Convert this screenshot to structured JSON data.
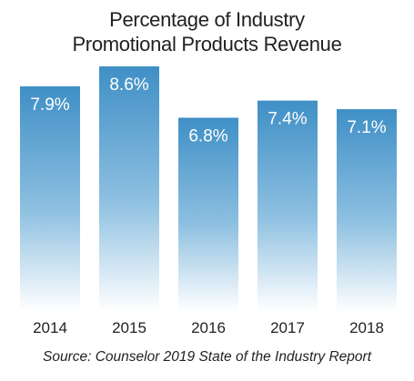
{
  "chart_data": {
    "type": "bar",
    "title_line1": "Percentage of Industry",
    "title_line2": "Promotional Products Revenue",
    "categories": [
      "2014",
      "2015",
      "2016",
      "2017",
      "2018"
    ],
    "values": [
      7.9,
      8.6,
      6.8,
      7.4,
      7.1
    ],
    "data_labels": [
      "7.9%",
      "8.6%",
      "6.8%",
      "7.4%",
      "7.1%"
    ],
    "source": "Source: Counselor 2019 State of the Industry Report",
    "bar_color_top": "#3f8fc6",
    "bar_color_bottom": "#ffffff",
    "grid": false,
    "legend": "none"
  }
}
